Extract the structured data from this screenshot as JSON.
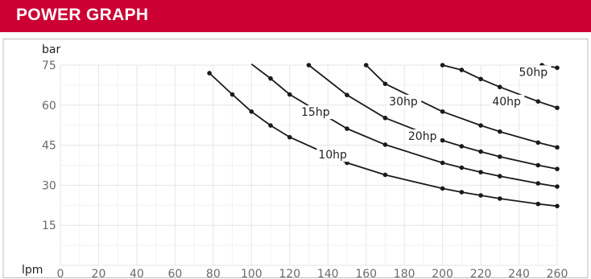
{
  "header": {
    "title": "POWER GRAPH",
    "bg": "#cc0033"
  },
  "chart_data": {
    "type": "line",
    "title": "POWER GRAPH",
    "xlabel": "lpm",
    "ylabel": "bar",
    "xlim": [
      0,
      260
    ],
    "ylim": [
      0,
      75
    ],
    "x_ticks": [
      0,
      20,
      40,
      60,
      80,
      100,
      120,
      140,
      160,
      180,
      200,
      220,
      240,
      260
    ],
    "y_ticks": [
      15,
      30,
      45,
      60,
      75
    ],
    "grid": true,
    "series": [
      {
        "name": "10hp",
        "points": [
          [
            78,
            72
          ],
          [
            90,
            64
          ],
          [
            100,
            57.6
          ],
          [
            110,
            52.4
          ],
          [
            120,
            48
          ],
          [
            150,
            38.4
          ],
          [
            170,
            33.9
          ],
          [
            200,
            28.8
          ],
          [
            210,
            27.4
          ],
          [
            220,
            26.2
          ],
          [
            230,
            25
          ],
          [
            250,
            23
          ],
          [
            260,
            22.2
          ]
        ]
      },
      {
        "name": "15hp",
        "points": [
          [
            100,
            75.4
          ],
          [
            110,
            70
          ],
          [
            120,
            64
          ],
          [
            150,
            51.2
          ],
          [
            170,
            45.2
          ],
          [
            200,
            38.4
          ],
          [
            210,
            36.6
          ],
          [
            220,
            34.9
          ],
          [
            230,
            33.4
          ],
          [
            250,
            30.7
          ],
          [
            260,
            29.5
          ]
        ]
      },
      {
        "name": "20hp",
        "points": [
          [
            130,
            75
          ],
          [
            150,
            63.8
          ],
          [
            170,
            55.2
          ],
          [
            200,
            46.8
          ],
          [
            210,
            44.6
          ],
          [
            220,
            42.6
          ],
          [
            230,
            40.7
          ],
          [
            250,
            37.5
          ],
          [
            260,
            36.1
          ]
        ]
      },
      {
        "name": "30hp",
        "points": [
          [
            160,
            75
          ],
          [
            170,
            68
          ],
          [
            200,
            57.6
          ],
          [
            220,
            52.4
          ],
          [
            230,
            50.1
          ],
          [
            250,
            46
          ],
          [
            260,
            44.2
          ]
        ]
      },
      {
        "name": "40hp",
        "points": [
          [
            200,
            75
          ],
          [
            210,
            73.2
          ],
          [
            220,
            69.8
          ],
          [
            230,
            66.8
          ],
          [
            250,
            61.4
          ],
          [
            260,
            59
          ]
        ]
      },
      {
        "name": "50hp",
        "points": [
          [
            252,
            75
          ],
          [
            260,
            74
          ]
        ]
      }
    ],
    "curve_labels": [
      {
        "text": "10hp",
        "x": 135,
        "y": 40
      },
      {
        "text": "15hp",
        "x": 126,
        "y": 56
      },
      {
        "text": "20hp",
        "x": 182,
        "y": 47
      },
      {
        "text": "30hp",
        "x": 172,
        "y": 60
      },
      {
        "text": "40hp",
        "x": 226,
        "y": 60
      },
      {
        "text": "50hp",
        "x": 240,
        "y": 71
      }
    ]
  }
}
